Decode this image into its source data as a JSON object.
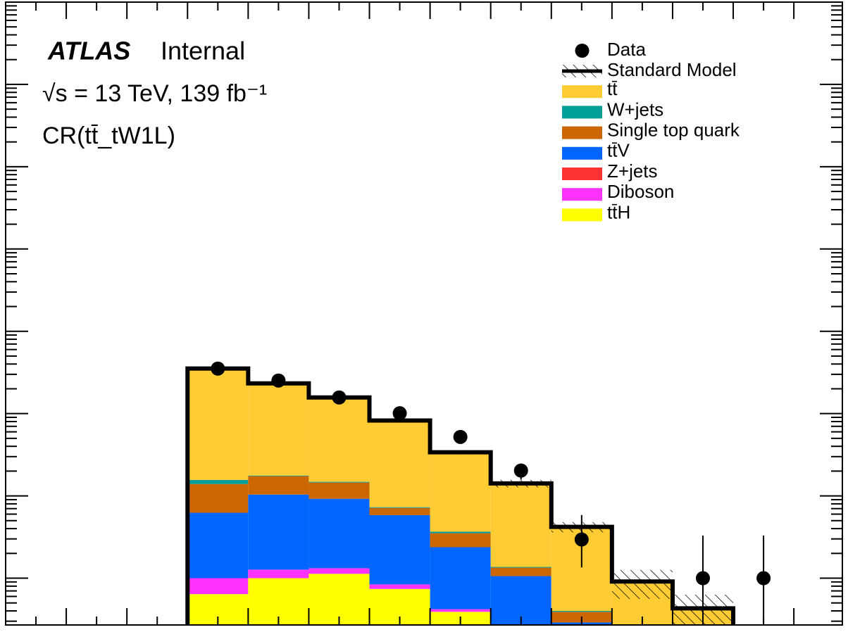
{
  "chart_data": {
    "type": "stacked_histogram",
    "title": "ATLAS",
    "subtitle": "Internal",
    "energy_label": "√s = 13 TeV, 139 fb⁻¹",
    "region_label": "CR(tt̄_tW1L)",
    "log_scale": true,
    "xlim": [
      0,
      1380
    ],
    "xticks": [
      0,
      100,
      200,
      300,
      400,
      500,
      600,
      700,
      800,
      900,
      1000,
      1100,
      1200,
      1300
    ],
    "ylim": [
      0.27,
      10000000
    ],
    "yticks": [
      1,
      10,
      100,
      1000,
      10000,
      100000,
      1000000,
      10000000
    ],
    "bins": [
      300,
      400,
      500,
      600,
      700,
      800,
      900,
      1000,
      1100,
      1200,
      1300
    ],
    "series": [
      {
        "name": "tt̄",
        "color": "#ffcc33",
        "values": [
          337,
          215,
          142,
          75,
          30.2,
          12.8,
          3.8,
          0.88,
          0.43,
          null
        ]
      },
      {
        "name": "W+jets",
        "color": "#009e96",
        "values": [
          1.7,
          0.3,
          0.3,
          0.15,
          0.15,
          0.03,
          0.01,
          0,
          0,
          null
        ]
      },
      {
        "name": "Single top quark",
        "color": "#cc6600",
        "values": [
          7.7,
          7.0,
          5.3,
          1.3,
          1.14,
          0.28,
          0.1,
          0.01,
          0,
          null
        ]
      },
      {
        "name": "tt̄V",
        "color": "#0066ff",
        "values": [
          5.24,
          9.1,
          7.9,
          5.0,
          1.96,
          0.84,
          0.22,
          0.01,
          0,
          null
        ]
      },
      {
        "name": "Z+jets",
        "color": "#ff3333",
        "values": [
          0,
          0,
          0,
          0,
          0,
          0.1,
          0.01,
          0,
          0,
          null
        ]
      },
      {
        "name": "Diboson",
        "color": "#ff33ff",
        "values": [
          0.36,
          0.27,
          0.19,
          0.1,
          0.03,
          0.02,
          0.01,
          0,
          0,
          null
        ]
      },
      {
        "name": "tt̄H",
        "color": "#ffff00",
        "values": [
          0.64,
          1.0,
          1.13,
          0.74,
          0.39,
          0.1,
          0.05,
          0.01,
          0,
          null
        ]
      }
    ],
    "total": {
      "name": "Standard Model",
      "color": "#000000",
      "uncertainty": [
        8,
        6,
        4,
        3,
        2,
        1.5,
        0.6,
        0.35,
        0.2,
        null
      ]
    },
    "data": {
      "name": "Data",
      "color": "#000000",
      "values": [
        352,
        252,
        157,
        101,
        52,
        20.3,
        2.95,
        null,
        1,
        1
      ],
      "error_low": [
        19,
        16,
        13,
        10,
        7.2,
        4.5,
        1.6,
        null,
        0.83,
        0.83
      ],
      "error_high": [
        19,
        16,
        13,
        10,
        7.2,
        4.5,
        2.9,
        null,
        2.3,
        2.3
      ]
    }
  }
}
